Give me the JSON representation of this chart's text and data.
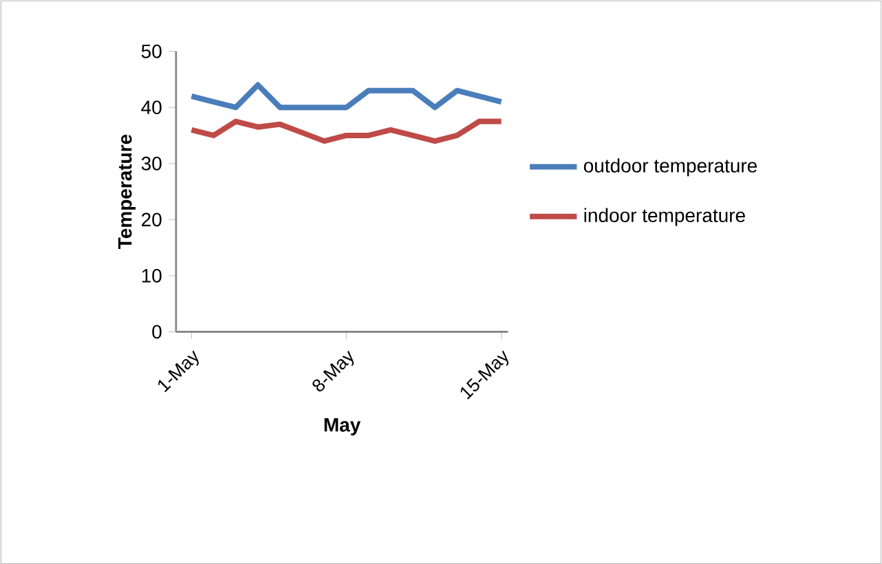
{
  "chart_data": {
    "type": "line",
    "xlabel": "May",
    "ylabel": "Temperature",
    "categories": [
      "1-May",
      null,
      null,
      null,
      null,
      null,
      null,
      "8-May",
      null,
      null,
      null,
      null,
      null,
      null,
      "15-May"
    ],
    "series": [
      {
        "name": "outdoor temperature",
        "color": "#4a7ebb",
        "values": [
          42,
          41,
          40,
          44,
          40,
          40,
          40,
          40,
          43,
          43,
          43,
          40,
          43,
          42,
          41
        ]
      },
      {
        "name": "indoor temperature",
        "color": "#be4b48",
        "values": [
          36,
          35,
          37.5,
          36.5,
          37,
          35.5,
          34,
          35,
          35,
          36,
          35,
          34,
          35,
          37.5,
          37.5
        ]
      }
    ],
    "ylim": [
      0,
      50
    ],
    "yticks": [
      0,
      10,
      20,
      30,
      40,
      50
    ],
    "legend": "right",
    "marker": "none",
    "line_style": "solid"
  }
}
